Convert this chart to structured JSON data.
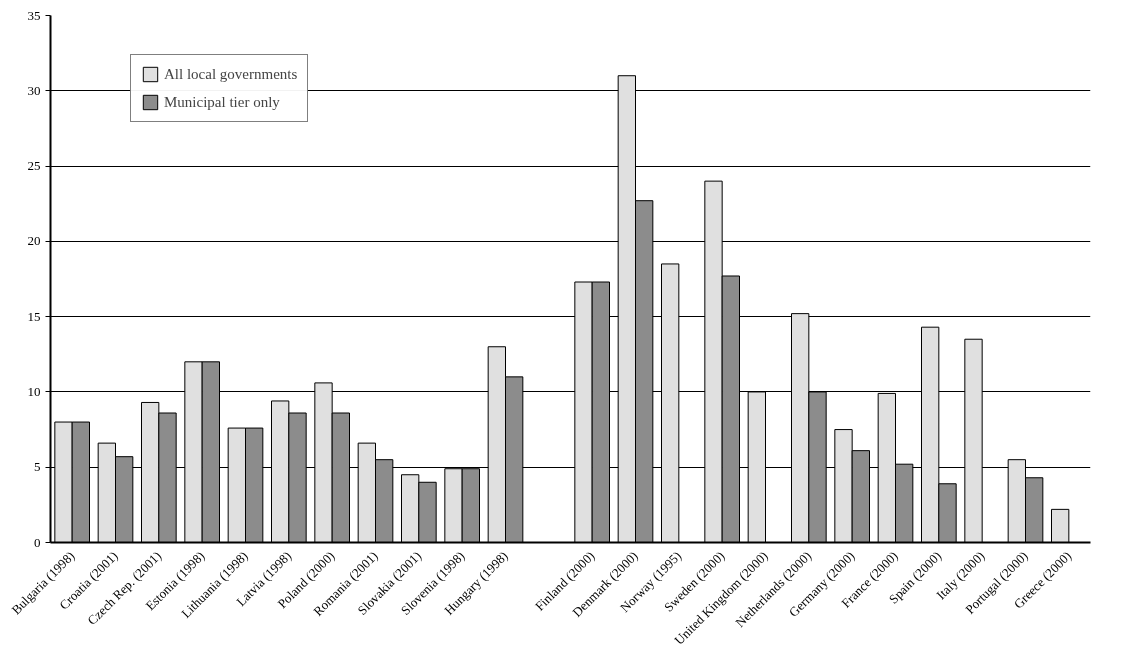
{
  "chart_data": {
    "type": "bar",
    "categories": [
      "Bulgaria (1998)",
      "Croatia (2001)",
      "Czech Rep. (2001)",
      "Estonia (1998)",
      "Lithuania (1998)",
      "Latvia (1998)",
      "Poland (2000)",
      "Romania (2001)",
      "Slovakia (2001)",
      "Slovenia (1998)",
      "Hungary (1998)",
      null,
      "Finland (2000)",
      "Denmark (2000)",
      "Norway (1995)",
      "Sweden (2000)",
      "United Kingdom (2000)",
      "Netherlands (2000)",
      "Germany (2000)",
      "France (2000)",
      "Spain (2000)",
      "Italy (2000)",
      "Portugal (2000)",
      "Greece (2000)"
    ],
    "series": [
      {
        "name": "All local governments",
        "color": "#e0e0e0",
        "values": [
          8,
          6.6,
          9.3,
          12,
          7.6,
          9.4,
          10.6,
          6.6,
          4.5,
          4.9,
          13,
          null,
          17.3,
          31,
          18.5,
          24,
          10,
          15.2,
          7.5,
          9.9,
          14.3,
          13.5,
          5.5,
          2.2
        ]
      },
      {
        "name": "Municipal tier only",
        "color": "#8c8c8c",
        "values": [
          8,
          5.7,
          8.6,
          12,
          7.6,
          8.6,
          8.6,
          5.5,
          4,
          4.9,
          11,
          null,
          17.3,
          22.7,
          null,
          17.7,
          null,
          10,
          6.1,
          5.2,
          3.9,
          null,
          4.3,
          null
        ]
      }
    ],
    "ylim": [
      0,
      35
    ],
    "yticks": [
      0,
      5,
      10,
      15,
      20,
      25,
      30,
      35
    ],
    "grid": "y",
    "legend": "top left"
  }
}
